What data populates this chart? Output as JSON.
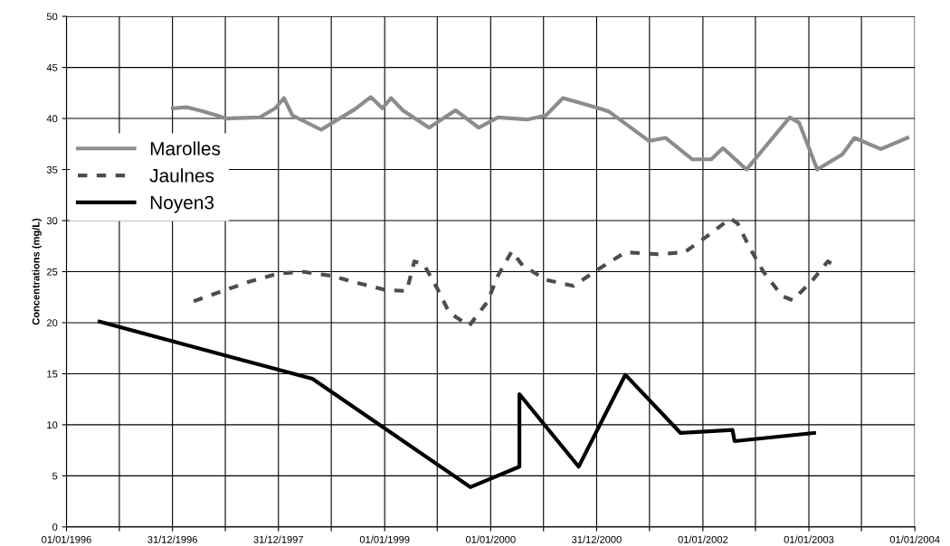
{
  "chart_data": {
    "type": "line",
    "ylabel": "Concentrations (mg/L)",
    "xlim": [
      "1996-01-01",
      "2004-01-01"
    ],
    "ylim": [
      0,
      50
    ],
    "xticks": [
      {
        "value": "1996-01-01",
        "label": "01/01/1996"
      },
      {
        "value": "1996-07-01",
        "label": null
      },
      {
        "value": "1996-12-31",
        "label": "31/12/1996"
      },
      {
        "value": "1997-07-01",
        "label": null
      },
      {
        "value": "1997-12-31",
        "label": "31/12/1997"
      },
      {
        "value": "1998-07-01",
        "label": null
      },
      {
        "value": "1999-01-01",
        "label": "01/01/1999"
      },
      {
        "value": "1999-07-01",
        "label": null
      },
      {
        "value": "2000-01-01",
        "label": "01/01/2000"
      },
      {
        "value": "2000-07-01",
        "label": null
      },
      {
        "value": "2000-12-31",
        "label": "31/12/2000"
      },
      {
        "value": "2001-07-01",
        "label": null
      },
      {
        "value": "2002-01-01",
        "label": "01/01/2002"
      },
      {
        "value": "2002-07-01",
        "label": null
      },
      {
        "value": "2003-01-01",
        "label": "01/01/2003"
      },
      {
        "value": "2003-07-01",
        "label": null
      },
      {
        "value": "2004-01-01",
        "label": "01/01/2004"
      }
    ],
    "yticks": [
      0,
      5,
      10,
      15,
      20,
      25,
      30,
      35,
      40,
      45,
      50
    ],
    "grid": true,
    "legend": "left",
    "marker": "none",
    "series": [
      {
        "name": "Marolles",
        "color": "#8c8c8c",
        "line_style": "solid",
        "x": [
          "1997-01-01",
          "1997-02-17",
          "1997-04-02",
          "1997-06-03",
          "1997-07-02",
          "1997-10-27",
          "1997-12-20",
          "1998-01-19",
          "1998-02-17",
          "1998-05-27",
          "1998-09-20",
          "1998-11-14",
          "1998-12-24",
          "1999-01-23",
          "1999-03-04",
          "1999-06-03",
          "1999-09-02",
          "1999-11-21",
          "2000-01-26",
          "2000-05-05",
          "2000-07-09",
          "2000-09-06",
          "2001-01-08",
          "2001-02-10",
          "2001-06-29",
          "2001-08-26",
          "2001-11-25",
          "2002-01-30",
          "2002-03-11",
          "2002-05-31",
          "2002-10-27",
          "2002-11-28",
          "2003-01-30",
          "2003-04-27",
          "2003-06-07",
          "2003-09-06",
          "2003-12-06"
        ],
        "values": [
          41.0,
          41.1,
          40.8,
          40.3,
          40.0,
          40.1,
          41.0,
          42.0,
          40.3,
          38.9,
          40.9,
          42.1,
          41.0,
          42.0,
          40.8,
          39.1,
          40.8,
          39.1,
          40.1,
          39.9,
          40.3,
          42.0,
          41.0,
          40.7,
          37.8,
          38.1,
          36.0,
          36.0,
          37.1,
          35.0,
          40.1,
          39.6,
          35.0,
          36.5,
          38.1,
          37.0,
          38.1
        ]
      },
      {
        "name": "Jaulnes",
        "color": "#4d4d4d",
        "line_style": "dashed",
        "x": [
          "1997-03-14",
          "1997-06-21",
          "1997-09-20",
          "1997-12-28",
          "1998-03-22",
          "1998-06-29",
          "1998-09-28",
          "1999-01-04",
          "1999-03-18",
          "1999-04-13",
          "1999-05-16",
          "1999-07-02",
          "1999-08-11",
          "1999-10-19",
          "1999-12-20",
          "2000-01-26",
          "2000-03-14",
          "2000-04-20",
          "2000-07-09",
          "2000-10-12",
          "2001-01-04",
          "2001-04-09",
          "2001-07-31",
          "2001-10-30",
          "2002-01-12",
          "2002-04-06",
          "2002-05-01",
          "2002-06-10",
          "2002-07-28",
          "2002-10-01",
          "2002-11-06",
          "2003-01-12",
          "2003-03-07",
          "2003-03-26"
        ],
        "values": [
          22.1,
          23.1,
          24.0,
          24.8,
          25.0,
          24.6,
          23.9,
          23.2,
          23.1,
          26.0,
          25.7,
          23.3,
          21.0,
          19.7,
          22.0,
          24.6,
          27.0,
          25.6,
          24.2,
          23.6,
          25.2,
          26.9,
          26.7,
          26.9,
          28.4,
          30.2,
          29.7,
          27.4,
          25.0,
          22.6,
          22.2,
          24.1,
          26.0,
          25.7
        ]
      },
      {
        "name": "Noyen3",
        "color": "#000000",
        "line_style": "solid",
        "x": [
          "1996-04-24",
          "1998-04-27",
          "1999-10-23",
          "2000-04-09",
          "2000-04-09",
          "2000-10-30",
          "2001-04-09",
          "2001-10-16",
          "2002-04-13",
          "2002-04-20",
          "2003-01-19"
        ],
        "values": [
          20.1,
          14.5,
          3.9,
          5.9,
          13.0,
          5.9,
          14.9,
          9.2,
          9.5,
          8.4,
          9.2
        ]
      }
    ]
  }
}
